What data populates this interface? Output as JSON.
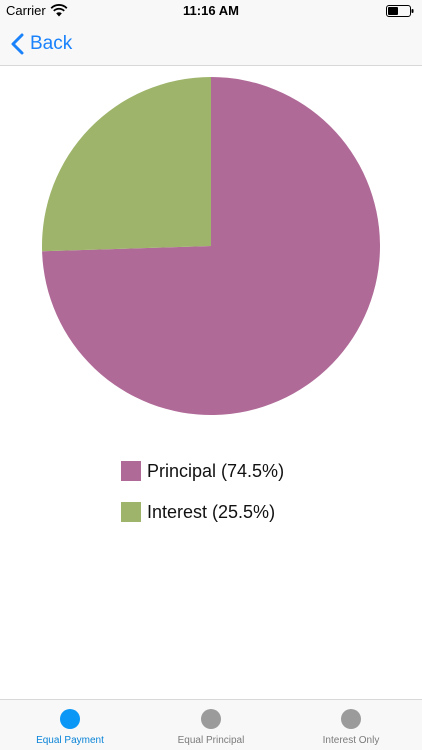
{
  "status_bar": {
    "carrier": "Carrier",
    "time": "11:16 AM"
  },
  "nav": {
    "back_label": "Back"
  },
  "chart_data": {
    "type": "pie",
    "series": [
      {
        "name": "Principal",
        "value": 74.5,
        "color": "#b06a98"
      },
      {
        "name": "Interest",
        "value": 25.5,
        "color": "#9db46a"
      }
    ]
  },
  "legend": {
    "items": [
      {
        "label": "Principal (74.5%)",
        "color": "#b06a98"
      },
      {
        "label": "Interest (25.5%)",
        "color": "#9db46a"
      }
    ]
  },
  "tabs": [
    {
      "label": "Equal Payment",
      "active": true
    },
    {
      "label": "Equal Principal",
      "active": false
    },
    {
      "label": "Interest Only",
      "active": false
    }
  ],
  "colors": {
    "accent": "#1a82fb",
    "inactive": "#9b9b9b"
  }
}
